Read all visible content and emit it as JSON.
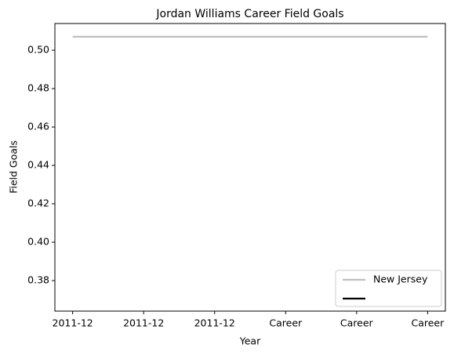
{
  "chart_data": {
    "type": "line",
    "title": "Jordan Williams  Career Field Goals",
    "xlabel": "Year",
    "ylabel": "Field Goals",
    "categories": [
      "2011-12",
      "2011-12",
      "2011-12",
      "Career",
      "Career",
      "Career"
    ],
    "series": [
      {
        "name": "New Jersey",
        "color": "#bfbfbf",
        "values": [
          0.507,
          0.507,
          0.507,
          0.507,
          0.507,
          0.507
        ]
      },
      {
        "color": "#000000",
        "values": [
          null,
          null,
          null,
          null,
          null,
          null
        ]
      }
    ],
    "ylim": [
      0.3641,
      0.5139
    ],
    "yticks": [
      0.38,
      {
        "value": 0.4,
        "label": "0.40"
      },
      0.42,
      0.44,
      0.46,
      0.48,
      {
        "value": 0.5,
        "label": "0.50"
      }
    ],
    "grid": false,
    "legend": "lower right"
  }
}
